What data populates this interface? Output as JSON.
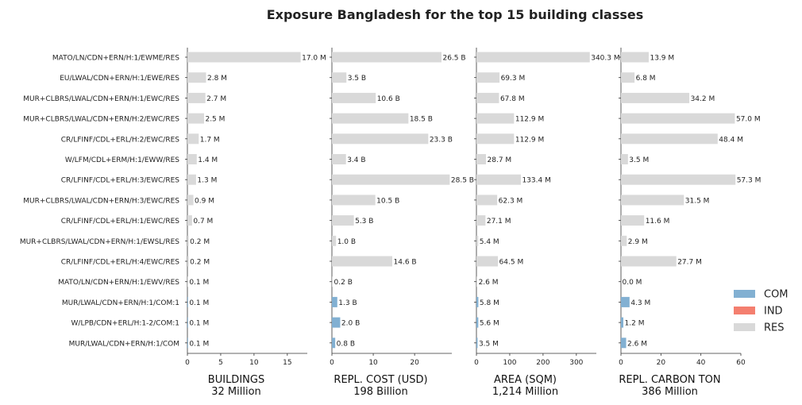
{
  "chart_data": {
    "type": "bar",
    "title": "Exposure Bangladesh for the top 15 building classes",
    "categories": [
      "MATO/LN/CDN+ERN/H:1/EWME/RES",
      "EU/LWAL/CDN+ERN/H:1/EWE/RES",
      "MUR+CLBRS/LWAL/CDN+ERN/H:1/EWC/RES",
      "MUR+CLBRS/LWAL/CDN+ERN/H:2/EWC/RES",
      "CR/LFINF/CDL+ERL/H:2/EWC/RES",
      "W/LFM/CDL+ERM/H:1/EWW/RES",
      "CR/LFINF/CDL+ERL/H:3/EWC/RES",
      "MUR+CLBRS/LWAL/CDN+ERN/H:3/EWC/RES",
      "CR/LFINF/CDL+ERL/H:1/EWC/RES",
      "MUR+CLBRS/LWAL/CDN+ERN/H:1/EWSL/RES",
      "CR/LFINF/CDL+ERL/H:4/EWC/RES",
      "MATO/LN/CDN+ERN/H:1/EWV/RES",
      "MUR/LWAL/CDN+ERN/H:1/COM:1",
      "W/LPB/CDN+ERL/H:1-2/COM:1",
      "MUR/LWAL/CDN+ERN/H:1/COM"
    ],
    "occupancy": [
      "RES",
      "RES",
      "RES",
      "RES",
      "RES",
      "RES",
      "RES",
      "RES",
      "RES",
      "RES",
      "RES",
      "RES",
      "COM",
      "COM",
      "COM"
    ],
    "legend": {
      "placement": "lower-right",
      "entries": [
        {
          "name": "COM",
          "color": "#82b0d2"
        },
        {
          "name": "IND",
          "color": "#f47f6f"
        },
        {
          "name": "RES",
          "color": "#d9d9d9"
        }
      ]
    },
    "panels": [
      {
        "xlabel": "BUILDINGS",
        "total": "32 Million",
        "xlim": [
          0,
          18
        ],
        "ticks": [
          0,
          5,
          10,
          15
        ],
        "values": [
          17.0,
          2.8,
          2.7,
          2.5,
          1.7,
          1.4,
          1.3,
          0.9,
          0.7,
          0.2,
          0.2,
          0.1,
          0.1,
          0.1,
          0.1
        ],
        "value_labels": [
          "17.0 M",
          "2.8 M",
          "2.7 M",
          "2.5 M",
          "1.7 M",
          "1.4 M",
          "1.3 M",
          "0.9 M",
          "0.7 M",
          "0.2 M",
          "0.2 M",
          "0.1 M",
          "0.1 M",
          "0.1 M",
          "0.1 M"
        ]
      },
      {
        "xlabel": "REPL. COST (USD)",
        "total": "198 Billion",
        "xlim": [
          0,
          29
        ],
        "ticks": [
          0,
          10,
          20
        ],
        "values": [
          26.5,
          3.5,
          10.6,
          18.5,
          23.3,
          3.4,
          28.5,
          10.5,
          5.3,
          1.0,
          14.6,
          0.2,
          1.3,
          2.0,
          0.8
        ],
        "value_labels": [
          "26.5 B",
          "3.5 B",
          "10.6 B",
          "18.5 B",
          "23.3 B",
          "3.4 B",
          "28.5 B",
          "10.5 B",
          "5.3 B",
          "1.0 B",
          "14.6 B",
          "0.2 B",
          "1.3 B",
          "2.0 B",
          "0.8 B"
        ]
      },
      {
        "xlabel": "AREA (SQM)",
        "total": "1,214 Million",
        "xlim": [
          0,
          360
        ],
        "ticks": [
          0,
          100,
          200,
          300
        ],
        "values": [
          340.3,
          69.3,
          67.8,
          112.9,
          112.9,
          28.7,
          133.4,
          62.3,
          27.1,
          5.4,
          64.5,
          2.6,
          5.8,
          5.6,
          3.5
        ],
        "value_labels": [
          "340.3 M",
          "69.3 M",
          "67.8 M",
          "112.9 M",
          "112.9 M",
          "28.7 M",
          "133.4 M",
          "62.3 M",
          "27.1 M",
          "5.4 M",
          "64.5 M",
          "2.6 M",
          "5.8 M",
          "5.6 M",
          "3.5 M"
        ]
      },
      {
        "xlabel": "REPL. CARBON TON",
        "total": "386 Million",
        "xlim": [
          0,
          60
        ],
        "ticks": [
          0,
          20,
          40,
          60
        ],
        "values": [
          13.9,
          6.8,
          34.2,
          57.0,
          48.4,
          3.5,
          57.3,
          31.5,
          11.6,
          2.9,
          27.7,
          0.0,
          4.3,
          1.2,
          2.6
        ],
        "value_labels": [
          "13.9 M",
          "6.8 M",
          "34.2 M",
          "57.0 M",
          "48.4 M",
          "3.5 M",
          "57.3 M",
          "31.5 M",
          "11.6 M",
          "2.9 M",
          "27.7 M",
          "0.0 M",
          "4.3 M",
          "1.2 M",
          "2.6 M"
        ]
      }
    ]
  }
}
